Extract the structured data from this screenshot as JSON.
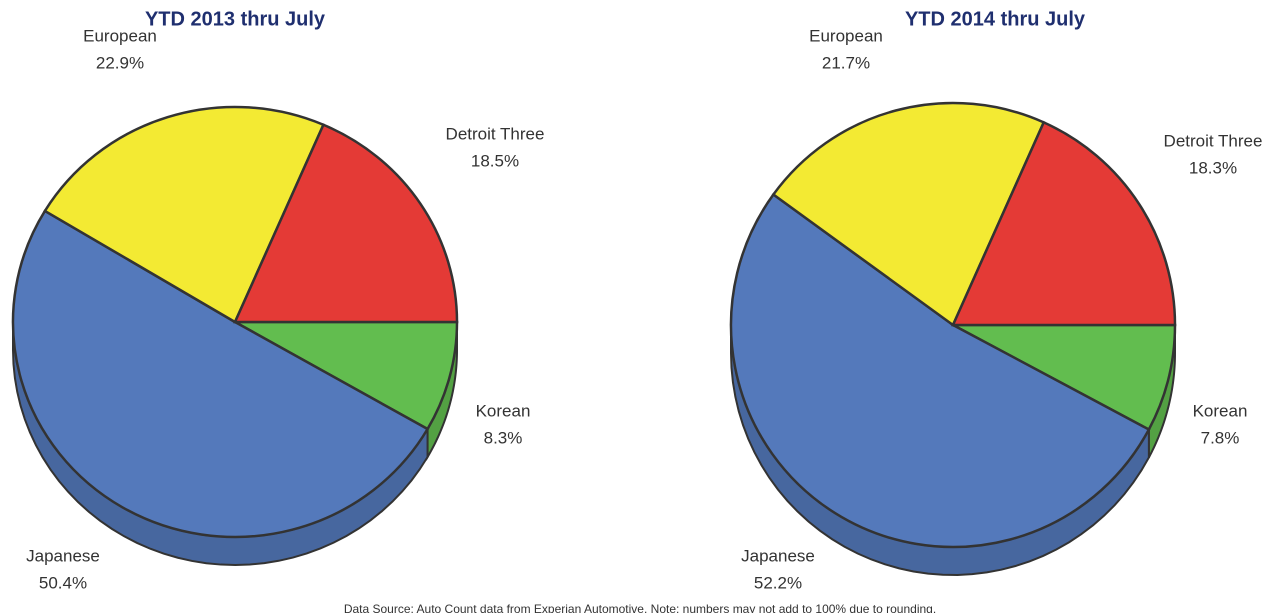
{
  "chart_data": [
    {
      "type": "pie",
      "title": "YTD 2013 thru July",
      "categories": [
        "Korean",
        "Japanese",
        "European",
        "Detroit Three"
      ],
      "values": [
        8.3,
        50.4,
        22.9,
        18.5
      ],
      "value_labels": [
        "8.3%",
        "50.4%",
        "22.9%",
        "18.5%"
      ],
      "colors": [
        "#62bd4f",
        "#5479bb",
        "#f3ea33",
        "#e43a36"
      ]
    },
    {
      "type": "pie",
      "title": "YTD 2014 thru July",
      "categories": [
        "Korean",
        "Japanese",
        "European",
        "Detroit Three"
      ],
      "values": [
        7.8,
        52.2,
        21.7,
        18.3
      ],
      "value_labels": [
        "7.8%",
        "52.2%",
        "21.7%",
        "18.3%"
      ],
      "colors": [
        "#62bd4f",
        "#5479bb",
        "#f3ea33",
        "#e43a36"
      ]
    }
  ],
  "source": "Data Source: Auto Count data from Experian Automotive. Note: numbers may not add to 100% due to rounding."
}
